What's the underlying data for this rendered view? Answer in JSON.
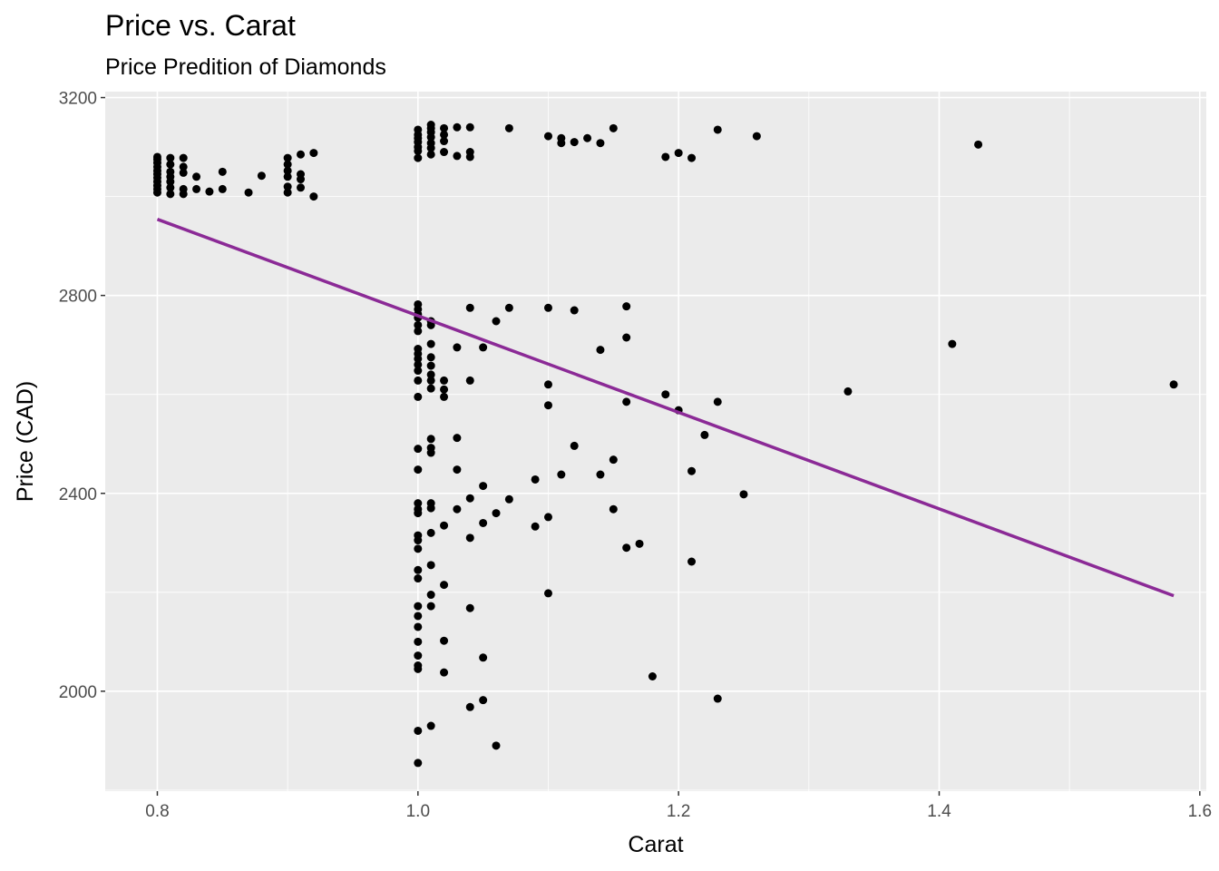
{
  "chart_data": {
    "type": "scatter",
    "title": "Price vs. Carat",
    "subtitle": "Price Predition of Diamonds",
    "xlabel": "Carat",
    "ylabel": "Price (CAD)",
    "xlim": [
      0.76,
      1.605
    ],
    "ylim": [
      1798,
      3212
    ],
    "x_ticks": [
      0.8,
      1.0,
      1.2,
      1.4,
      1.6
    ],
    "x_tick_labels": [
      "0.8",
      "1.0",
      "1.2",
      "1.4",
      "1.6"
    ],
    "y_ticks": [
      2000,
      2400,
      2800,
      3200
    ],
    "y_tick_labels": [
      "2000",
      "2400",
      "2800",
      "3200"
    ],
    "grid": true,
    "panel_background": "#ebebeb",
    "grid_color": "#ffffff",
    "point_color": "#000000",
    "line_color": "#8b2a96",
    "trend_line": {
      "x": [
        0.8,
        1.58
      ],
      "y": [
        2954,
        2193
      ]
    },
    "points": [
      [
        0.8,
        3080
      ],
      [
        0.8,
        3075
      ],
      [
        0.8,
        3068
      ],
      [
        0.8,
        3060
      ],
      [
        0.8,
        3052
      ],
      [
        0.8,
        3045
      ],
      [
        0.8,
        3038
      ],
      [
        0.8,
        3030
      ],
      [
        0.8,
        3022
      ],
      [
        0.8,
        3015
      ],
      [
        0.8,
        3008
      ],
      [
        0.81,
        3078
      ],
      [
        0.81,
        3065
      ],
      [
        0.81,
        3050
      ],
      [
        0.81,
        3040
      ],
      [
        0.81,
        3030
      ],
      [
        0.81,
        3018
      ],
      [
        0.81,
        3005
      ],
      [
        0.82,
        3078
      ],
      [
        0.82,
        3060
      ],
      [
        0.82,
        3048
      ],
      [
        0.82,
        3015
      ],
      [
        0.82,
        3005
      ],
      [
        0.83,
        3040
      ],
      [
        0.83,
        3015
      ],
      [
        0.84,
        3010
      ],
      [
        0.85,
        3050
      ],
      [
        0.85,
        3015
      ],
      [
        0.87,
        3008
      ],
      [
        0.88,
        3042
      ],
      [
        0.9,
        3078
      ],
      [
        0.9,
        3065
      ],
      [
        0.9,
        3052
      ],
      [
        0.9,
        3040
      ],
      [
        0.9,
        3020
      ],
      [
        0.9,
        3008
      ],
      [
        0.91,
        3085
      ],
      [
        0.91,
        3045
      ],
      [
        0.91,
        3035
      ],
      [
        0.91,
        3018
      ],
      [
        0.92,
        3088
      ],
      [
        0.92,
        3000
      ],
      [
        1.0,
        3135
      ],
      [
        1.0,
        3125
      ],
      [
        1.0,
        3118
      ],
      [
        1.0,
        3110
      ],
      [
        1.0,
        3100
      ],
      [
        1.0,
        3092
      ],
      [
        1.0,
        3078
      ],
      [
        1.01,
        3145
      ],
      [
        1.01,
        3138
      ],
      [
        1.01,
        3130
      ],
      [
        1.01,
        3120
      ],
      [
        1.01,
        3108
      ],
      [
        1.01,
        3098
      ],
      [
        1.01,
        3085
      ],
      [
        1.02,
        3138
      ],
      [
        1.02,
        3125
      ],
      [
        1.02,
        3112
      ],
      [
        1.02,
        3090
      ],
      [
        1.03,
        3140
      ],
      [
        1.03,
        3082
      ],
      [
        1.04,
        3140
      ],
      [
        1.04,
        3090
      ],
      [
        1.04,
        3080
      ],
      [
        1.07,
        3138
      ],
      [
        1.1,
        3122
      ],
      [
        1.11,
        3118
      ],
      [
        1.11,
        3108
      ],
      [
        1.12,
        3110
      ],
      [
        1.13,
        3118
      ],
      [
        1.14,
        3108
      ],
      [
        1.15,
        3138
      ],
      [
        1.19,
        3080
      ],
      [
        1.2,
        3088
      ],
      [
        1.21,
        3078
      ],
      [
        1.23,
        3135
      ],
      [
        1.26,
        3122
      ],
      [
        1.43,
        3105
      ],
      [
        1.0,
        2782
      ],
      [
        1.0,
        2772
      ],
      [
        1.0,
        2762
      ],
      [
        1.0,
        2755
      ],
      [
        1.0,
        2740
      ],
      [
        1.0,
        2728
      ],
      [
        1.0,
        2692
      ],
      [
        1.0,
        2682
      ],
      [
        1.0,
        2672
      ],
      [
        1.0,
        2660
      ],
      [
        1.0,
        2648
      ],
      [
        1.0,
        2628
      ],
      [
        1.0,
        2595
      ],
      [
        1.01,
        2748
      ],
      [
        1.01,
        2740
      ],
      [
        1.01,
        2702
      ],
      [
        1.01,
        2675
      ],
      [
        1.01,
        2658
      ],
      [
        1.01,
        2640
      ],
      [
        1.01,
        2628
      ],
      [
        1.01,
        2612
      ],
      [
        1.02,
        2628
      ],
      [
        1.02,
        2610
      ],
      [
        1.02,
        2595
      ],
      [
        1.03,
        2695
      ],
      [
        1.04,
        2775
      ],
      [
        1.04,
        2628
      ],
      [
        1.05,
        2695
      ],
      [
        1.06,
        2748
      ],
      [
        1.07,
        2775
      ],
      [
        1.1,
        2775
      ],
      [
        1.1,
        2620
      ],
      [
        1.1,
        2578
      ],
      [
        1.12,
        2770
      ],
      [
        1.14,
        2690
      ],
      [
        1.16,
        2778
      ],
      [
        1.16,
        2715
      ],
      [
        1.16,
        2585
      ],
      [
        1.19,
        2600
      ],
      [
        1.2,
        2568
      ],
      [
        1.22,
        2518
      ],
      [
        1.23,
        2585
      ],
      [
        1.33,
        2606
      ],
      [
        1.41,
        2702
      ],
      [
        1.58,
        2620
      ],
      [
        1.0,
        2490
      ],
      [
        1.0,
        2448
      ],
      [
        1.0,
        2380
      ],
      [
        1.0,
        2368
      ],
      [
        1.0,
        2360
      ],
      [
        1.0,
        2315
      ],
      [
        1.0,
        2305
      ],
      [
        1.0,
        2288
      ],
      [
        1.0,
        2245
      ],
      [
        1.0,
        2228
      ],
      [
        1.0,
        2172
      ],
      [
        1.0,
        2152
      ],
      [
        1.0,
        2130
      ],
      [
        1.0,
        2100
      ],
      [
        1.0,
        2072
      ],
      [
        1.0,
        2052
      ],
      [
        1.0,
        2045
      ],
      [
        1.0,
        1920
      ],
      [
        1.0,
        1855
      ],
      [
        1.01,
        2510
      ],
      [
        1.01,
        2492
      ],
      [
        1.01,
        2482
      ],
      [
        1.01,
        2380
      ],
      [
        1.01,
        2370
      ],
      [
        1.01,
        2320
      ],
      [
        1.01,
        2255
      ],
      [
        1.01,
        2195
      ],
      [
        1.01,
        2172
      ],
      [
        1.01,
        1930
      ],
      [
        1.02,
        2335
      ],
      [
        1.02,
        2215
      ],
      [
        1.02,
        2102
      ],
      [
        1.02,
        2038
      ],
      [
        1.03,
        2512
      ],
      [
        1.03,
        2448
      ],
      [
        1.03,
        2368
      ],
      [
        1.04,
        2390
      ],
      [
        1.04,
        2310
      ],
      [
        1.04,
        2168
      ],
      [
        1.04,
        1968
      ],
      [
        1.05,
        2415
      ],
      [
        1.05,
        2340
      ],
      [
        1.05,
        2068
      ],
      [
        1.05,
        1982
      ],
      [
        1.06,
        2360
      ],
      [
        1.06,
        1890
      ],
      [
        1.07,
        2388
      ],
      [
        1.09,
        2428
      ],
      [
        1.09,
        2333
      ],
      [
        1.1,
        2352
      ],
      [
        1.1,
        2198
      ],
      [
        1.11,
        2438
      ],
      [
        1.12,
        2496
      ],
      [
        1.14,
        2438
      ],
      [
        1.15,
        2468
      ],
      [
        1.15,
        2368
      ],
      [
        1.16,
        2290
      ],
      [
        1.17,
        2298
      ],
      [
        1.18,
        2030
      ],
      [
        1.21,
        2445
      ],
      [
        1.21,
        2262
      ],
      [
        1.23,
        1985
      ],
      [
        1.25,
        2398
      ]
    ]
  }
}
